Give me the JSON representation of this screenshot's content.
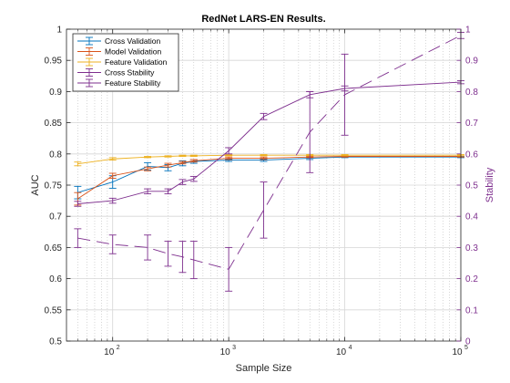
{
  "chart_data": {
    "type": "line",
    "title": "RedNet LARS-EN Results.",
    "xlabel": "Sample Size",
    "ylabel_left": "AUC",
    "ylabel_right": "Stability",
    "x_scale": "log",
    "xlim": [
      40,
      100000
    ],
    "ylim_left": [
      0.5,
      1.0
    ],
    "ylim_right": [
      0,
      1
    ],
    "x_ticks": [
      {
        "value": 100,
        "base": "10",
        "exp": "2"
      },
      {
        "value": 1000,
        "base": "10",
        "exp": "3"
      },
      {
        "value": 10000,
        "base": "10",
        "exp": "4"
      },
      {
        "value": 100000,
        "base": "10",
        "exp": "5"
      }
    ],
    "y_ticks_left": [
      "0.5",
      "0.55",
      "0.6",
      "0.65",
      "0.7",
      "0.75",
      "0.8",
      "0.85",
      "0.9",
      "0.95",
      "1"
    ],
    "y_ticks_right": [
      "0",
      "0.1",
      "0.2",
      "0.3",
      "0.4",
      "0.5",
      "0.6",
      "0.7",
      "0.8",
      "0.9",
      "1"
    ],
    "grid": true,
    "legend_position": "top-left",
    "x": [
      50,
      100,
      200,
      300,
      400,
      500,
      1000,
      2000,
      5000,
      10000,
      100000
    ],
    "series": [
      {
        "name": "Cross Validation",
        "axis": "left",
        "color": "#0072BD",
        "dash": "solid",
        "values": [
          0.738,
          0.755,
          0.78,
          0.778,
          0.785,
          0.788,
          0.79,
          0.79,
          0.793,
          0.795,
          0.795
        ],
        "error": [
          0.01,
          0.01,
          0.006,
          0.005,
          0.004,
          0.003,
          0.002,
          0.002,
          0.002,
          0.001,
          0.001
        ]
      },
      {
        "name": "Model Validation",
        "axis": "left",
        "color": "#D95319",
        "dash": "solid",
        "values": [
          0.728,
          0.765,
          0.776,
          0.782,
          0.786,
          0.789,
          0.793,
          0.793,
          0.795,
          0.796,
          0.796
        ],
        "error": [
          0.01,
          0.004,
          0.003,
          0.003,
          0.002,
          0.002,
          0.002,
          0.002,
          0.001,
          0.001,
          0.001
        ]
      },
      {
        "name": "Feature Validation",
        "axis": "left",
        "color": "#EDB120",
        "dash": "solid",
        "values": [
          0.784,
          0.792,
          0.795,
          0.796,
          0.797,
          0.797,
          0.798,
          0.798,
          0.798,
          0.798,
          0.798
        ],
        "error": [
          0.003,
          0.002,
          0.001,
          0.001,
          0.001,
          0.001,
          0.001,
          0.001,
          0.001,
          0.001,
          0.001
        ]
      },
      {
        "name": "Cross Stability",
        "axis": "right",
        "color": "#7E2F8E",
        "dash": "dash",
        "values": [
          0.33,
          0.31,
          0.3,
          0.28,
          0.27,
          0.26,
          0.23,
          0.42,
          0.67,
          0.79,
          0.98
        ],
        "error": [
          0.03,
          0.03,
          0.04,
          0.04,
          0.05,
          0.06,
          0.07,
          0.09,
          0.13,
          0.13,
          0.01
        ]
      },
      {
        "name": "Feature Stability",
        "axis": "right",
        "color": "#7E2F8E",
        "dash": "solid",
        "values": [
          0.44,
          0.45,
          0.48,
          0.48,
          0.51,
          0.52,
          0.61,
          0.72,
          0.79,
          0.81,
          0.83
        ],
        "error": [
          0.008,
          0.008,
          0.008,
          0.008,
          0.008,
          0.008,
          0.01,
          0.01,
          0.01,
          0.008,
          0.005
        ]
      }
    ]
  }
}
